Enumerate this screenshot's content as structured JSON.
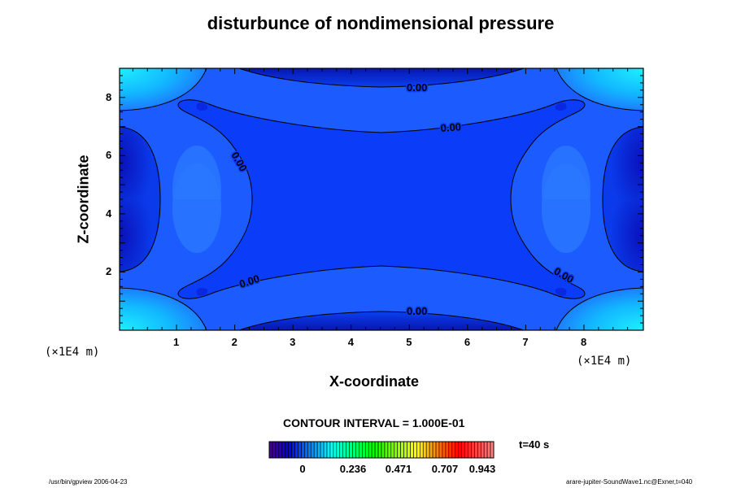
{
  "chart_data": {
    "type": "heatmap",
    "subtype": "filled-contour",
    "title": "disturbunce of nondimensional pressure",
    "xlabel": "X-coordinate",
    "ylabel": "Z-coordinate",
    "x_unit": "(×1E4 m)",
    "z_unit": "(×1E4 m)",
    "xlim": [
      0,
      9
    ],
    "ylim": [
      0,
      9
    ],
    "x_ticks": [
      "1",
      "2",
      "3",
      "4",
      "5",
      "6",
      "7",
      "8"
    ],
    "y_ticks": [
      "2",
      "4",
      "6",
      "8"
    ],
    "contour_labels": [
      "0.00",
      "0.00",
      "0.00",
      "0.00",
      "0.00",
      "0.00"
    ],
    "contour_interval": "CONTOUR INTERVAL = 1.000E-01",
    "time_label": "t=40 s",
    "colorbar_ticks": [
      "0",
      "0.236",
      "0.471",
      "0.707",
      "0.943"
    ],
    "colorbar_stripes": 70,
    "colors": {
      "center": "#0b3cf8",
      "band": "#1c5cff",
      "dark": "#0a14c8",
      "corner": "#19e6ff"
    }
  },
  "footer": {
    "left": "/usr/bin/gpview 2006-04-23",
    "right": "arare-jupiter-SoundWave1.nc@Exner,t=040"
  }
}
